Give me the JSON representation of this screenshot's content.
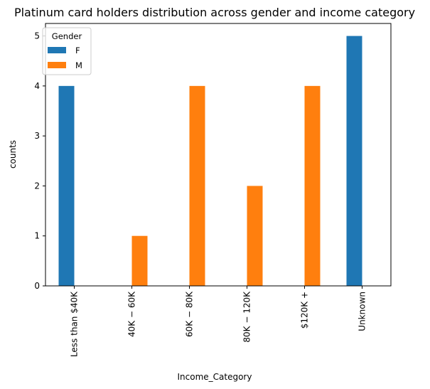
{
  "chart_data": {
    "type": "bar",
    "title": "Platinum card holders distribution across gender and income category",
    "xlabel": "Income_Category",
    "ylabel": "counts",
    "categories": [
      "Less than $40K",
      "$40K - $60K",
      "$60K - $80K",
      "$80K - $120K",
      "$120K +",
      "Unknown"
    ],
    "category_labels_rendered": [
      "Less than $40K",
      "40K − 60K",
      "60K − 80K",
      "80K − 120K",
      "$120K +",
      "Unknown"
    ],
    "series": [
      {
        "name": "F",
        "color": "#1f77b4",
        "values": [
          4,
          0,
          0,
          0,
          0,
          5
        ]
      },
      {
        "name": "M",
        "color": "#ff7f0e",
        "values": [
          0,
          1,
          4,
          2,
          4,
          0
        ]
      }
    ],
    "ylim": [
      0,
      5.25
    ],
    "yticks": [
      0,
      1,
      2,
      3,
      4,
      5
    ],
    "legend": {
      "title": "Gender",
      "placement": "top-left"
    },
    "grid": false
  }
}
